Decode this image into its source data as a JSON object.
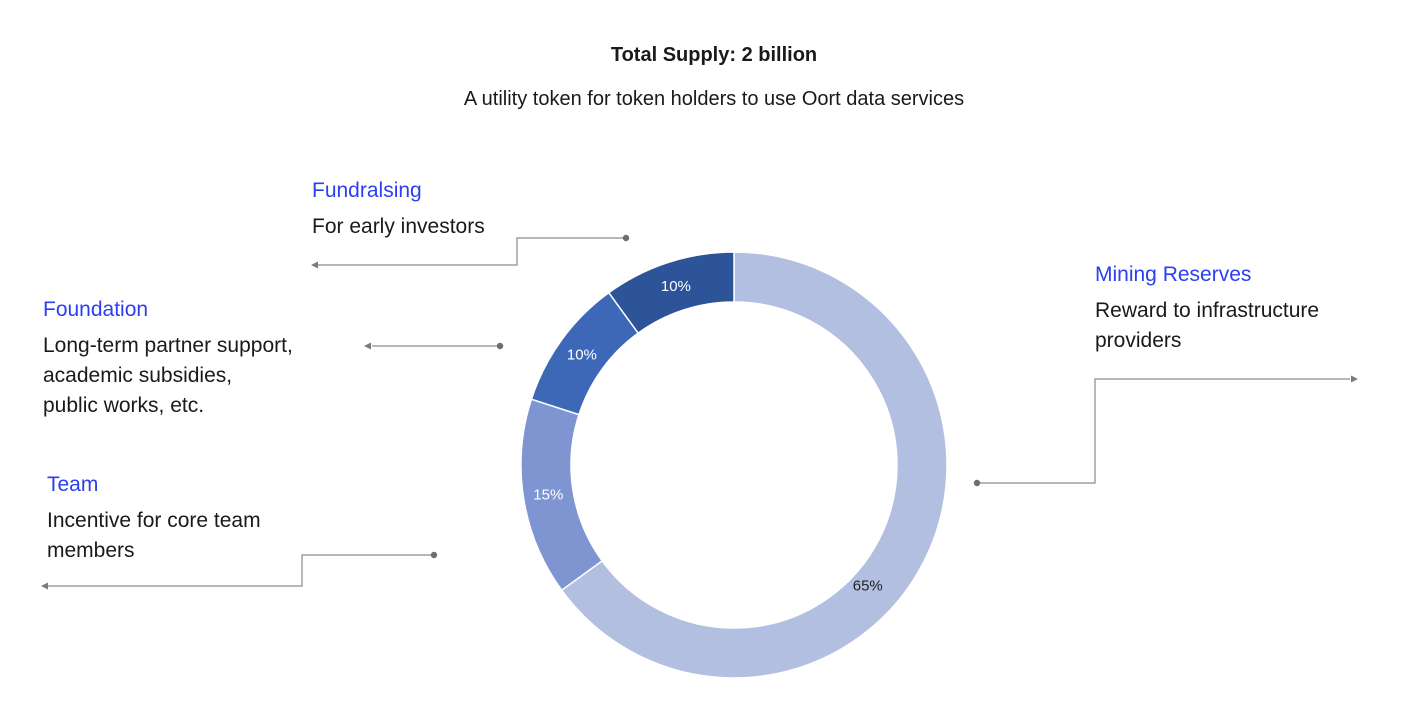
{
  "header": {
    "title": "Total Supply: 2 billion",
    "subtitle": "A utility token for token holders to use Oort data services"
  },
  "categories": [
    {
      "name": "Fundralsing",
      "desc": "For early investors"
    },
    {
      "name": "Foundation",
      "desc": "Long-term partner support,\nacademic subsidies,\npublic works, etc."
    },
    {
      "name": "Team",
      "desc": "Incentive for core team\nmembers"
    },
    {
      "name": "Mining Reserves",
      "desc": "Reward to infrastructure\nproviders"
    }
  ],
  "chart_data": {
    "type": "pie",
    "donut": true,
    "slices": [
      {
        "value": 65,
        "label": "65%",
        "color": "#b3bfe0"
      },
      {
        "value": 15,
        "label": "15%",
        "color": "#7e95d1"
      },
      {
        "value": 10,
        "label": "10%",
        "color": "#3d68b8"
      },
      {
        "value": 10,
        "label": "10%",
        "color": "#2d5398"
      }
    ],
    "start": "12 o'clock",
    "direction": "clockwise",
    "connector_color": "#8a8a8a"
  }
}
